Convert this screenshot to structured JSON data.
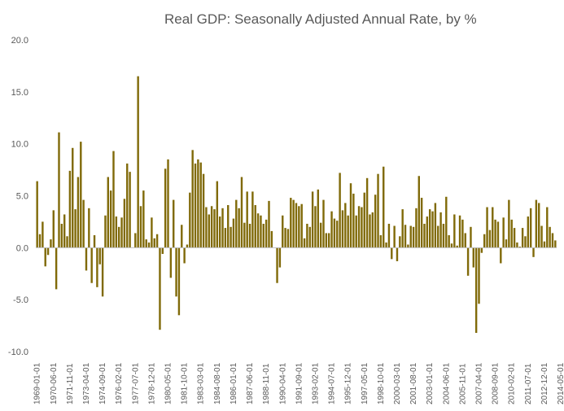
{
  "chart_data": {
    "type": "bar",
    "title": "Real GDP: Seasonally Adjusted Annual Rate, by %",
    "xlabel": "",
    "ylabel": "",
    "ylim": [
      -10,
      20
    ],
    "yticks": [
      "-10.0",
      "-5.0",
      "0.0",
      "5.0",
      "10.0",
      "15.0",
      "20.0"
    ],
    "ytick_values": [
      -10,
      -5,
      0,
      5,
      10,
      15,
      20
    ],
    "bar_color": "#806a09",
    "xtick_labels": [
      "1969-01-01",
      "1970-06-01",
      "1971-11-01",
      "1973-04-01",
      "1974-09-01",
      "1976-02-01",
      "1977-07-01",
      "1978-12-01",
      "1980-05-01",
      "1981-10-01",
      "1983-03-01",
      "1984-08-01",
      "1986-01-01",
      "1987-06-01",
      "1988-11-01",
      "1990-04-01",
      "1991-09-01",
      "1993-02-01",
      "1994-07-01",
      "1995-12-01",
      "1997-05-01",
      "1998-10-01",
      "2000-03-01",
      "2001-08-01",
      "2003-01-01",
      "2004-06-01",
      "2005-11-01",
      "2007-04-01",
      "2008-09-01",
      "2010-02-01",
      "2011-07-01",
      "2012-12-01",
      "2014-05-01",
      "2015-10-01"
    ],
    "values": [
      6.4,
      1.3,
      2.5,
      -1.8,
      -0.7,
      0.8,
      3.6,
      -4.0,
      11.1,
      2.3,
      3.2,
      1.1,
      7.4,
      9.6,
      3.7,
      6.8,
      10.2,
      4.6,
      -2.2,
      3.8,
      -3.4,
      1.2,
      -3.8,
      -1.6,
      -4.7,
      3.1,
      6.8,
      5.5,
      9.3,
      3.0,
      2.0,
      2.9,
      4.7,
      8.1,
      7.3,
      0.0,
      1.4,
      16.5,
      4.0,
      5.5,
      0.8,
      0.5,
      2.9,
      0.9,
      1.3,
      -7.9,
      -0.6,
      7.6,
      8.5,
      -2.9,
      4.6,
      -4.7,
      -6.5,
      2.2,
      -1.5,
      0.3,
      5.3,
      9.4,
      8.1,
      8.5,
      8.2,
      7.1,
      3.9,
      3.2,
      4.0,
      3.7,
      6.4,
      3.0,
      3.8,
      1.9,
      4.1,
      2.0,
      2.8,
      4.6,
      3.8,
      6.8,
      2.4,
      5.4,
      2.3,
      5.4,
      4.1,
      3.3,
      3.1,
      2.3,
      2.7,
      4.5,
      1.6,
      0.0,
      -3.4,
      -1.9,
      3.1,
      1.9,
      1.8,
      4.8,
      4.6,
      4.3,
      4.0,
      4.2,
      0.9,
      2.3,
      2.0,
      5.4,
      4.0,
      5.6,
      2.4,
      4.6,
      1.4,
      1.4,
      3.5,
      2.8,
      2.6,
      7.2,
      3.6,
      4.3,
      3.1,
      6.2,
      5.2,
      3.1,
      4.0,
      3.9,
      5.3,
      6.7,
      3.2,
      3.4,
      5.1,
      7.1,
      1.2,
      7.8,
      0.5,
      2.3,
      -1.1,
      2.1,
      -1.3,
      1.1,
      3.7,
      2.2,
      0.3,
      2.1,
      2.0,
      3.8,
      6.9,
      4.8,
      2.3,
      3.0,
      3.7,
      3.5,
      4.3,
      2.1,
      3.4,
      2.3,
      4.9,
      1.2,
      0.4,
      3.2,
      0.2,
      3.1,
      2.7,
      1.4,
      -2.7,
      2.0,
      -1.9,
      -8.2,
      -5.4,
      -0.5,
      1.3,
      3.9,
      1.7,
      3.9,
      2.7,
      2.5,
      -1.5,
      2.9,
      0.8,
      4.6,
      2.7,
      1.9,
      0.5,
      0.1,
      1.9,
      1.1,
      3.0,
      3.8,
      -0.9,
      4.6,
      4.3,
      2.1,
      0.6,
      3.9,
      2.0,
      1.4,
      0.7
    ]
  }
}
